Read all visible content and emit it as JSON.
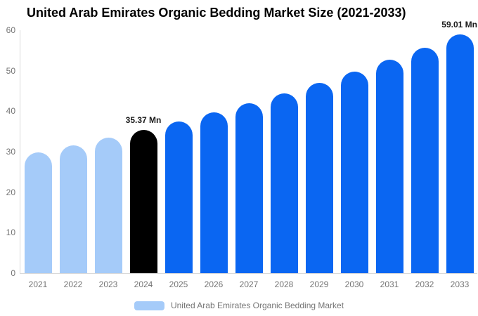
{
  "chart_data": {
    "type": "bar",
    "title": "United Arab Emirates Organic Bedding Market Size (2021-2033)",
    "categories": [
      "2021",
      "2022",
      "2023",
      "2024",
      "2025",
      "2026",
      "2027",
      "2028",
      "2029",
      "2030",
      "2031",
      "2032",
      "2033"
    ],
    "values": [
      29.82,
      31.57,
      33.41,
      35.37,
      37.44,
      39.63,
      41.95,
      44.4,
      47.0,
      49.75,
      52.66,
      55.74,
      59.01
    ],
    "point_labels": {
      "2024": "35.37 Mn",
      "2033": "59.01 Mn"
    },
    "bar_colors": [
      "#A5CBF9",
      "#A5CBF9",
      "#A5CBF9",
      "#000000",
      "#0A66F2",
      "#0A66F2",
      "#0A66F2",
      "#0A66F2",
      "#0A66F2",
      "#0A66F2",
      "#0A66F2",
      "#0A66F2",
      "#0A66F2"
    ],
    "xlabel": "",
    "ylabel": "",
    "ylim": [
      0,
      60
    ],
    "yticks": [
      0,
      10,
      20,
      30,
      40,
      50,
      60
    ],
    "grid": "off",
    "legend": {
      "position": "bottom",
      "label": "United Arab Emirates Organic Bedding Market",
      "swatch_color": "#A5CBF9"
    },
    "colors": {
      "historical": "#A5CBF9",
      "base_year": "#000000",
      "forecast": "#0A66F2",
      "axis_line": "#d9d9d9",
      "tick_text": "#757575",
      "title_text": "#000000",
      "value_label_text": "#1a1a1a"
    }
  }
}
